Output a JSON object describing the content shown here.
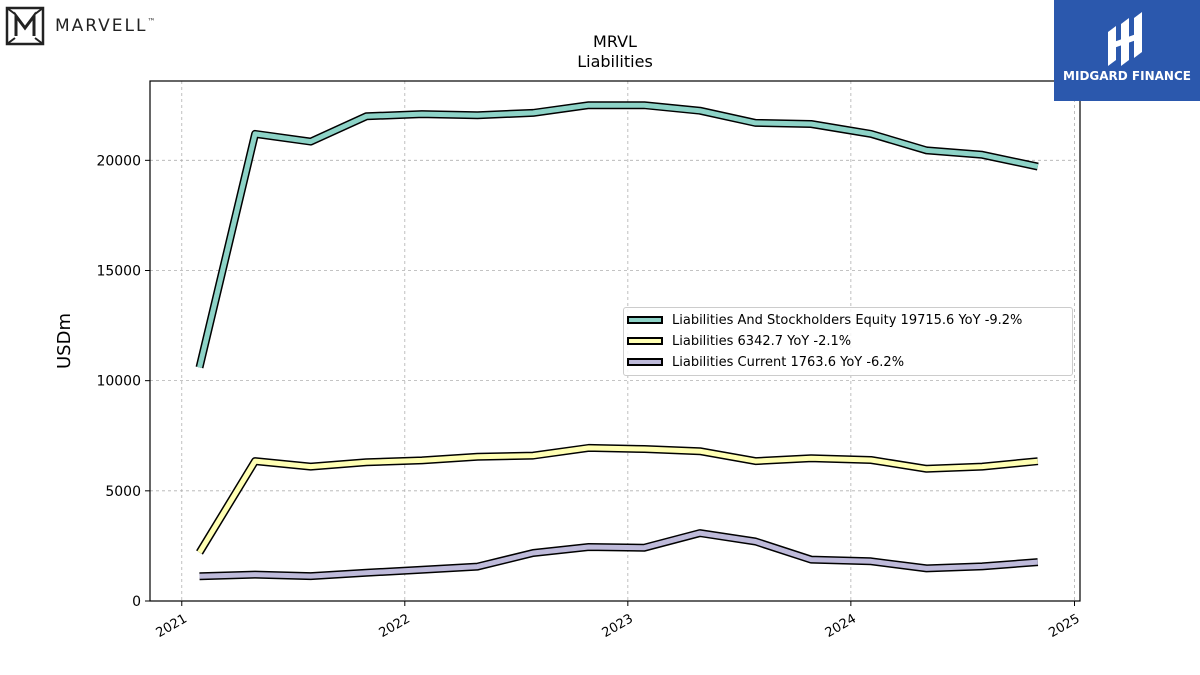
{
  "brand": {
    "name": "MARVELL",
    "tm": "™"
  },
  "sponsor": {
    "name": "MIDGARD FINANCE",
    "bg_color": "#2b58ad"
  },
  "chart_data": {
    "type": "line",
    "title": "MRVL",
    "subtitle": "Liabilities",
    "xlabel": "",
    "ylabel": "USDm",
    "xlim": [
      "2020-11-10",
      "2025-01-10"
    ],
    "ylim": [
      0,
      23600
    ],
    "xticks": [
      "2021",
      "2022",
      "2023",
      "2024",
      "2025"
    ],
    "yticks": [
      0,
      5000,
      10000,
      15000,
      20000
    ],
    "grid": true,
    "legend_position": "center-right",
    "x": [
      "2021-01-30",
      "2021-05-01",
      "2021-07-31",
      "2021-10-30",
      "2022-01-29",
      "2022-04-30",
      "2022-07-30",
      "2022-10-29",
      "2023-01-28",
      "2023-04-29",
      "2023-07-29",
      "2023-10-28",
      "2024-02-03",
      "2024-05-04",
      "2024-08-03",
      "2024-11-02"
    ],
    "series": [
      {
        "name": "Liabilities And Stockholders Equity  19715.6 YoY -9.2%",
        "color": "#8dd3c7",
        "values": [
          10600,
          21200,
          20850,
          22000,
          22100,
          22050,
          22150,
          22500,
          22500,
          22250,
          21700,
          21650,
          21200,
          20450,
          20250,
          19715.6
        ]
      },
      {
        "name": "Liabilities  6342.7 YoY -2.1%",
        "color": "#ffffb3",
        "values": [
          2200,
          6350,
          6100,
          6300,
          6380,
          6550,
          6600,
          6950,
          6900,
          6800,
          6350,
          6480,
          6400,
          6000,
          6100,
          6342.7
        ]
      },
      {
        "name": "Liabilities Current  1763.6 YoY -6.2%",
        "color": "#bebada",
        "values": [
          1120,
          1200,
          1130,
          1280,
          1420,
          1560,
          2180,
          2450,
          2420,
          3080,
          2700,
          1880,
          1800,
          1480,
          1570,
          1763.6
        ]
      }
    ]
  }
}
